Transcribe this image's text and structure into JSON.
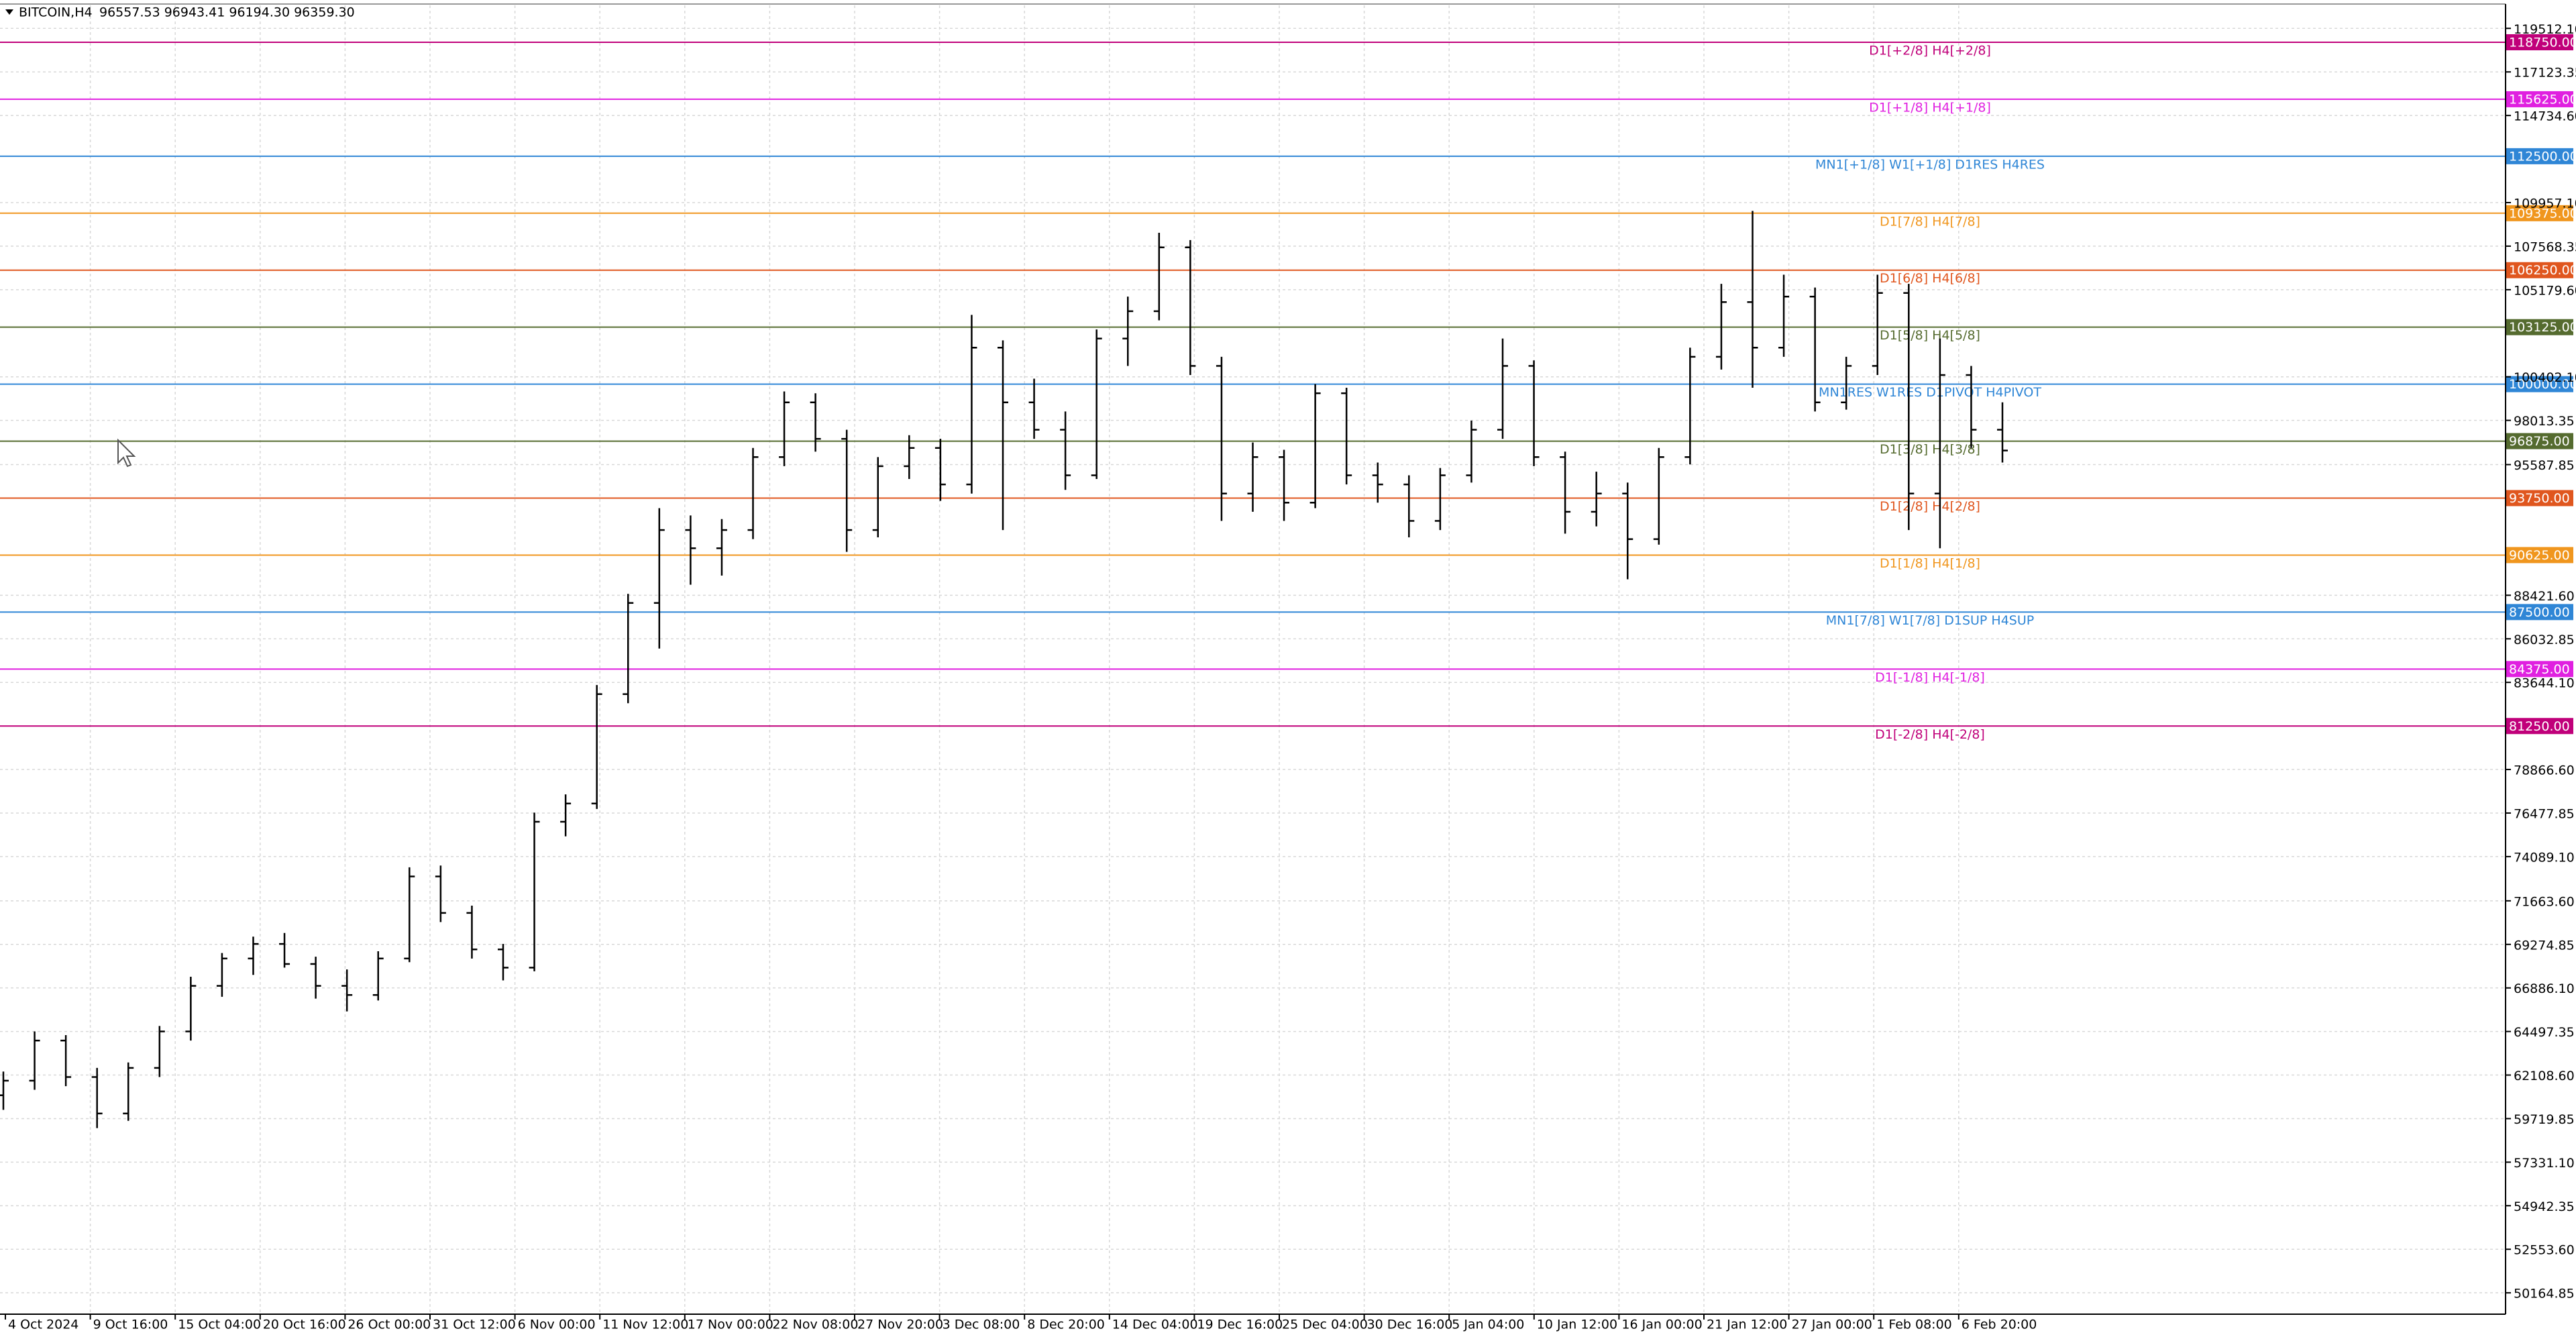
{
  "chart_data": {
    "type": "ohlc",
    "title": "BITCOIN,H4",
    "info": "96557.53 96943.41 96194.30 96359.30",
    "ylim": [
      48994,
      120773
    ],
    "grid": true,
    "bar_color": "#000000",
    "yticks": [
      {
        "value": 119512.1,
        "label": "119512.10"
      },
      {
        "value": 117123.35,
        "label": "117123.35"
      },
      {
        "value": 114734.6,
        "label": "114734.60"
      },
      {
        "value": 109957.1,
        "label": "109957.10"
      },
      {
        "value": 107568.35,
        "label": "107568.35"
      },
      {
        "value": 105179.6,
        "label": "105179.60"
      },
      {
        "value": 100402.1,
        "label": "100402.10"
      },
      {
        "value": 98013.35,
        "label": "98013.35"
      },
      {
        "value": 95587.85,
        "label": "95587.85"
      },
      {
        "value": 88421.6,
        "label": "88421.60"
      },
      {
        "value": 86032.85,
        "label": "86032.85"
      },
      {
        "value": 83644.1,
        "label": "83644.10"
      },
      {
        "value": 78866.6,
        "label": "78866.60"
      },
      {
        "value": 76477.85,
        "label": "76477.85"
      },
      {
        "value": 74089.1,
        "label": "74089.10"
      },
      {
        "value": 71663.6,
        "label": "71663.60"
      },
      {
        "value": 69274.85,
        "label": "69274.85"
      },
      {
        "value": 66886.1,
        "label": "66886.10"
      },
      {
        "value": 64497.35,
        "label": "64497.35"
      },
      {
        "value": 62108.6,
        "label": "62108.60"
      },
      {
        "value": 59719.85,
        "label": "59719.85"
      },
      {
        "value": 57331.1,
        "label": "57331.10"
      },
      {
        "value": 54942.35,
        "label": "54942.35"
      },
      {
        "value": 52553.6,
        "label": "52553.60"
      },
      {
        "value": 50164.85,
        "label": "50164.85"
      }
    ],
    "categories": [
      "4 Oct 2024",
      "9 Oct 16:00",
      "15 Oct 04:00",
      "20 Oct 16:00",
      "26 Oct 00:00",
      "31 Oct 12:00",
      "6 Nov 00:00",
      "11 Nov 12:00",
      "17 Nov 00:00",
      "22 Nov 08:00",
      "27 Nov 20:00",
      "3 Dec 08:00",
      "8 Dec 20:00",
      "14 Dec 04:00",
      "19 Dec 16:00",
      "25 Dec 04:00",
      "30 Dec 16:00",
      "5 Jan 04:00",
      "10 Jan 12:00",
      "16 Jan 00:00",
      "21 Jan 12:00",
      "27 Jan 00:00",
      "1 Feb 08:00",
      "6 Feb 20:00"
    ],
    "levels": [
      {
        "value": 118750,
        "price_label": "118750.00",
        "label": "D1[+2/8] H4[+2/8]",
        "color": "#c0007a"
      },
      {
        "value": 115625,
        "price_label": "115625.00",
        "label": "D1[+1/8] H4[+1/8]",
        "color": "#e020e0"
      },
      {
        "value": 112500,
        "price_label": "112500.00",
        "label": "MN1[+1/8] W1[+1/8] D1RES H4RES",
        "color": "#2f86d6"
      },
      {
        "value": 109375,
        "price_label": "109375.00",
        "label": "D1[7/8] H4[7/8]",
        "color": "#f0961e"
      },
      {
        "value": 106250,
        "price_label": "106250.00",
        "label": "D1[6/8] H4[6/8]",
        "color": "#e0561e"
      },
      {
        "value": 103125,
        "price_label": "103125.00",
        "label": "D1[5/8] H4[5/8]",
        "color": "#556b2f"
      },
      {
        "value": 100000,
        "price_label": "100000.00",
        "label": "MN1RES W1RES D1PIVOT H4PIVOT",
        "color": "#2f86d6"
      },
      {
        "value": 96875,
        "price_label": "96875.00",
        "label": "D1[3/8] H4[3/8]",
        "color": "#556b2f"
      },
      {
        "value": 93750,
        "price_label": "93750.00",
        "label": "D1[2/8] H4[2/8]",
        "color": "#e0561e"
      },
      {
        "value": 90625,
        "price_label": "90625.00",
        "label": "D1[1/8] H4[1/8]",
        "color": "#f0961e"
      },
      {
        "value": 87500,
        "price_label": "87500.00",
        "label": "MN1[7/8] W1[7/8] D1SUP H4SUP",
        "color": "#2f86d6"
      },
      {
        "value": 84375,
        "price_label": "84375.00",
        "label": "D1[-1/8] H4[-1/8]",
        "color": "#e020e0"
      },
      {
        "value": 81250,
        "price_label": "81250.00",
        "label": "D1[-2/8] H4[-2/8]",
        "color": "#c0007a"
      }
    ],
    "ohlc": [
      [
        61000,
        62300,
        60200,
        61800
      ],
      [
        61800,
        64500,
        61300,
        64000
      ],
      [
        64000,
        64300,
        61500,
        62000
      ],
      [
        62000,
        62500,
        59200,
        60000
      ],
      [
        60000,
        62800,
        59600,
        62500
      ],
      [
        62500,
        64800,
        62000,
        64500
      ],
      [
        64500,
        67500,
        64000,
        67000
      ],
      [
        67000,
        68800,
        66400,
        68500
      ],
      [
        68500,
        69700,
        67600,
        69300
      ],
      [
        69300,
        69900,
        68000,
        68200
      ],
      [
        68200,
        68600,
        66300,
        67000
      ],
      [
        67000,
        67900,
        65600,
        66500
      ],
      [
        66500,
        68900,
        66200,
        68500
      ],
      [
        68500,
        73500,
        68300,
        73000
      ],
      [
        73000,
        73600,
        70500,
        71000
      ],
      [
        71000,
        71400,
        68500,
        69000
      ],
      [
        69000,
        69300,
        67300,
        68000
      ],
      [
        68000,
        76500,
        67800,
        76000
      ],
      [
        76000,
        77500,
        75200,
        77000
      ],
      [
        77000,
        83500,
        76700,
        83000
      ],
      [
        83000,
        88500,
        82500,
        88000
      ],
      [
        88000,
        93200,
        85500,
        92000
      ],
      [
        92000,
        92800,
        89000,
        91000
      ],
      [
        91000,
        92600,
        89500,
        92000
      ],
      [
        92000,
        96500,
        91500,
        96000
      ],
      [
        96000,
        99600,
        95500,
        99000
      ],
      [
        99000,
        99500,
        96300,
        97000
      ],
      [
        97000,
        97500,
        90800,
        92000
      ],
      [
        92000,
        96000,
        91600,
        95500
      ],
      [
        95500,
        97200,
        94800,
        96500
      ],
      [
        96500,
        97000,
        93600,
        94500
      ],
      [
        94500,
        103800,
        94000,
        102000
      ],
      [
        102000,
        102400,
        92000,
        99000
      ],
      [
        99000,
        100300,
        97000,
        97500
      ],
      [
        97500,
        98500,
        94200,
        95000
      ],
      [
        95000,
        103000,
        94800,
        102500
      ],
      [
        102500,
        104800,
        101000,
        104000
      ],
      [
        104000,
        108300,
        103500,
        107500
      ],
      [
        107500,
        107900,
        100500,
        101000
      ],
      [
        101000,
        101500,
        92500,
        94000
      ],
      [
        94000,
        96800,
        93000,
        96000
      ],
      [
        96000,
        96400,
        92500,
        93500
      ],
      [
        93500,
        100000,
        93200,
        99500
      ],
      [
        99500,
        99800,
        94500,
        95000
      ],
      [
        95000,
        95700,
        93500,
        94500
      ],
      [
        94500,
        95000,
        91600,
        92500
      ],
      [
        92500,
        95400,
        92000,
        95000
      ],
      [
        95000,
        98000,
        94600,
        97500
      ],
      [
        97500,
        102500,
        97000,
        101000
      ],
      [
        101000,
        101300,
        95500,
        96000
      ],
      [
        96000,
        96300,
        91800,
        93000
      ],
      [
        93000,
        95200,
        92200,
        94000
      ],
      [
        94000,
        94600,
        89300,
        91500
      ],
      [
        91500,
        96500,
        91200,
        96000
      ],
      [
        96000,
        102000,
        95600,
        101500
      ],
      [
        101500,
        105500,
        100800,
        104500
      ],
      [
        104500,
        109500,
        99800,
        102000
      ],
      [
        102000,
        106000,
        101500,
        104800
      ],
      [
        104800,
        105300,
        98500,
        99000
      ],
      [
        99000,
        101500,
        98600,
        101000
      ],
      [
        101000,
        106000,
        100500,
        105000
      ],
      [
        105000,
        105500,
        92000,
        94000
      ],
      [
        94000,
        102500,
        91000,
        100500
      ],
      [
        100500,
        101000,
        96500,
        97500
      ],
      [
        97500,
        99000,
        95700,
        96359.3
      ]
    ]
  }
}
